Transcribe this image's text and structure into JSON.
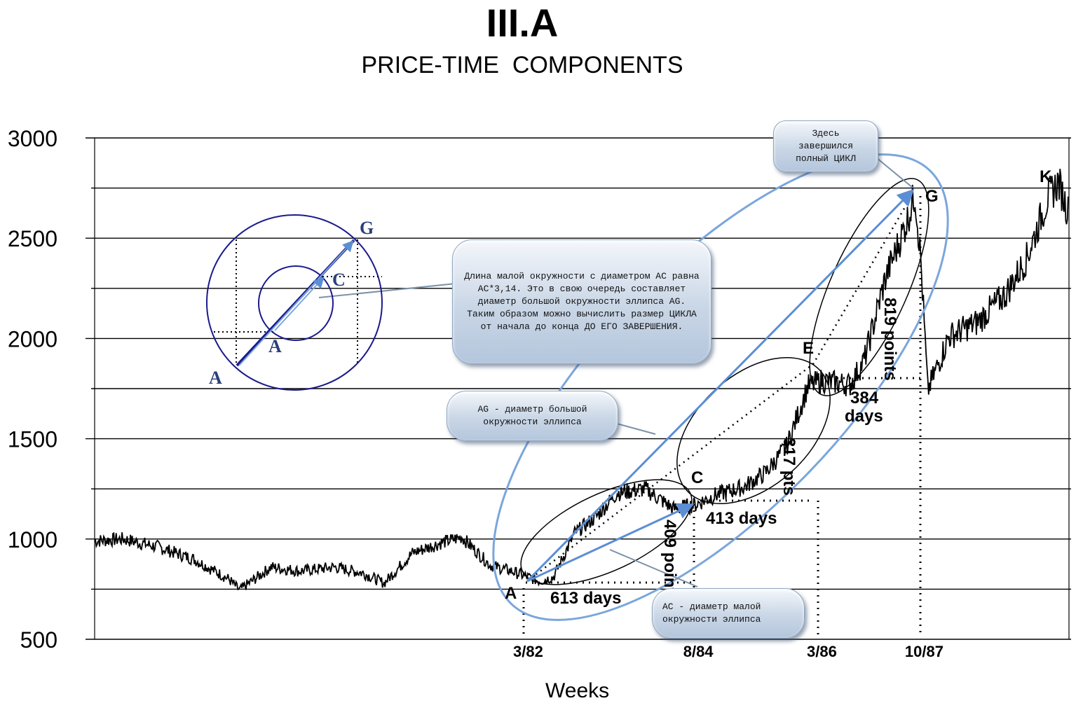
{
  "chart_data": {
    "type": "line",
    "title": "III.A",
    "subtitle": "PRICE-TIME  COMPONENTS",
    "xlabel": "Weeks",
    "ylabel": "",
    "ylim": [
      500,
      3000
    ],
    "xlim": [
      1976.1,
      1989.9
    ],
    "yticks": [
      "3000",
      "2500",
      "2000",
      "1500",
      "1000",
      "500"
    ],
    "ytick_values": [
      3000,
      2500,
      2000,
      1500,
      1000,
      500
    ],
    "gridlines": [
      3000,
      2750,
      2500,
      2250,
      2000,
      1750,
      1500,
      1250,
      1000,
      750,
      500
    ],
    "xticks": [
      {
        "label": "3/82",
        "x": 1982.17
      },
      {
        "label": "8/84",
        "x": 1984.58
      },
      {
        "label": "3/86",
        "x": 1986.33
      },
      {
        "label": "10/87",
        "x": 1987.78
      }
    ],
    "series": [
      {
        "name": "Price",
        "x": [
          1976.1,
          1976.5,
          1977.0,
          1977.5,
          1978.0,
          1978.15,
          1978.6,
          1979.0,
          1979.5,
          1979.9,
          1980.2,
          1980.6,
          1981.0,
          1981.3,
          1981.7,
          1982.0,
          1982.4,
          1982.6,
          1982.9,
          1983.2,
          1983.5,
          1983.9,
          1984.3,
          1984.6,
          1984.9,
          1985.3,
          1985.6,
          1985.9,
          1986.2,
          1986.4,
          1986.8,
          1987.0,
          1987.3,
          1987.6,
          1987.72,
          1987.8,
          1987.9,
          1988.2,
          1988.6,
          1989.0,
          1989.3,
          1989.6,
          1989.75,
          1989.9
        ],
        "values": [
          990,
          1000,
          960,
          900,
          800,
          745,
          860,
          840,
          860,
          830,
          780,
          930,
          980,
          1010,
          870,
          840,
          790,
          810,
          1030,
          1110,
          1230,
          1250,
          1150,
          1170,
          1220,
          1260,
          1330,
          1460,
          1760,
          1790,
          1770,
          1890,
          2300,
          2580,
          2720,
          2400,
          1740,
          2010,
          2080,
          2220,
          2400,
          2700,
          2780,
          2620
        ]
      }
    ],
    "points": {
      "A": "A",
      "C": "C",
      "E": "E",
      "G": "G",
      "K": "K"
    },
    "annotations": {
      "d613": "613 days",
      "d413": "413 days",
      "d384": "384 days",
      "p409": "409 points",
      "p317": "317 pts",
      "p819": "819 points"
    },
    "inset": {
      "G": "G",
      "C": "C",
      "A1": "A",
      "A2": "A"
    },
    "callouts": {
      "circle": "Длина малой окружности с диаметром AC равна AC*3,14. Это в свою очередь составляет диаметр большой окружности эллипса AG. Таким образом можно вычислить размер ЦИКЛА от начала до конца ДО ЕГО ЗАВЕРШЕНИЯ.",
      "ag": "AG - диаметр большой окружности эллипса",
      "ac": "AC - диаметр малой окружности эллипса",
      "cycle": "Здесь завершился полный ЦИКЛ"
    },
    "colors": {
      "blue": "#7aa6dc",
      "navy": "#1a1a8c",
      "line": "#000000"
    }
  }
}
